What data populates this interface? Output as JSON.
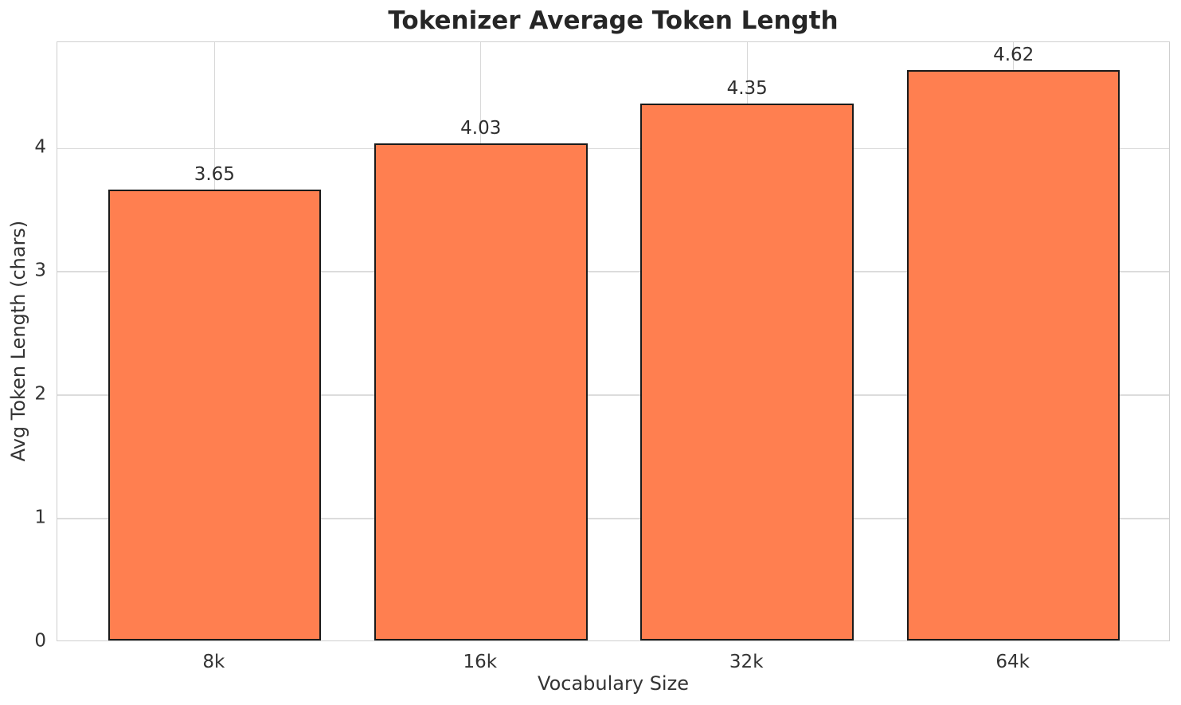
{
  "chart_data": {
    "type": "bar",
    "title": "Tokenizer Average Token Length",
    "xlabel": "Vocabulary Size",
    "ylabel": "Avg Token Length (chars)",
    "categories": [
      "8k",
      "16k",
      "32k",
      "64k"
    ],
    "values": [
      3.65,
      4.03,
      4.35,
      4.62
    ],
    "value_labels": [
      "3.65",
      "4.03",
      "4.35",
      "4.62"
    ],
    "yticks": [
      0,
      1,
      2,
      3,
      4
    ],
    "ylim": [
      0,
      4.86
    ],
    "grid": "both",
    "legend": "none",
    "bar_color": "#FF7F50",
    "bar_edge_color": "#1A1A1A",
    "grid_color": "#DCDCDC",
    "background_color": "#FFFFFF"
  }
}
